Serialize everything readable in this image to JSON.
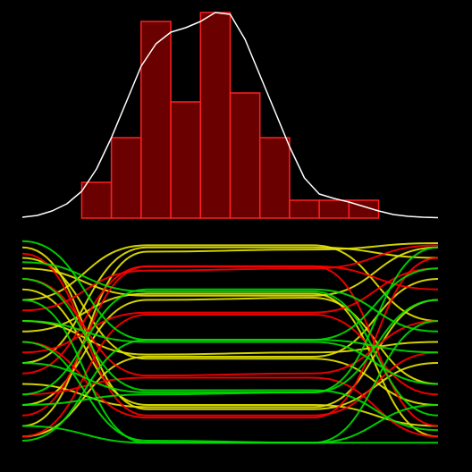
{
  "chart_data": [
    {
      "type": "histogram",
      "bins": [
        0,
        1,
        2,
        3,
        4,
        5,
        6,
        7,
        8,
        9,
        10
      ],
      "counts": [
        4,
        9,
        22,
        13,
        23,
        14,
        9,
        2,
        2,
        2
      ],
      "xlim": [
        -2,
        12
      ],
      "ylim": [
        0,
        23.4
      ],
      "color": "#6b0000",
      "edgecolor": "#ff2020",
      "density": {
        "color": "#ffffff",
        "x": [
          -2,
          -1.5,
          -1,
          -0.5,
          0,
          0.5,
          1,
          1.5,
          2,
          2.5,
          3,
          3.5,
          4,
          4.5,
          5,
          5.5,
          6,
          6.5,
          7,
          7.5,
          8,
          8.5,
          9,
          9.5,
          10,
          10.5,
          11,
          11.5,
          12
        ],
        "y": [
          0.1,
          0.3,
          0.8,
          1.6,
          3,
          5.5,
          9,
          13,
          17,
          19.5,
          20.8,
          21.3,
          22,
          23,
          22.8,
          20,
          16,
          12,
          8,
          4.5,
          2.7,
          2.2,
          1.8,
          1.3,
          0.8,
          0.4,
          0.2,
          0.1,
          0.05
        ]
      }
    },
    {
      "type": "parallel",
      "x": [
        0,
        30,
        70,
        100
      ],
      "xlim": [
        0,
        100
      ],
      "ylim": [
        0,
        100
      ],
      "series": [
        {
          "color": "#e8e800",
          "values": [
            40,
            95,
            95,
            90
          ]
        },
        {
          "color": "#e8e800",
          "values": [
            10,
            93,
            94,
            97
          ]
        },
        {
          "color": "#e8e800",
          "values": [
            70,
            96,
            96,
            60
          ]
        },
        {
          "color": "#e8e800",
          "values": [
            85,
            72,
            72,
            95
          ]
        },
        {
          "color": "#e8e800",
          "values": [
            20,
            70,
            71,
            30
          ]
        },
        {
          "color": "#e8e800",
          "values": [
            55,
            73,
            73,
            5
          ]
        },
        {
          "color": "#e8e800",
          "values": [
            5,
            43,
            43,
            80
          ]
        },
        {
          "color": "#e8e800",
          "values": [
            90,
            42,
            42,
            20
          ]
        },
        {
          "color": "#e8e800",
          "values": [
            60,
            44,
            45,
            50
          ]
        },
        {
          "color": "#e8e800",
          "values": [
            30,
            19,
            19,
            70
          ]
        },
        {
          "color": "#e8e800",
          "values": [
            75,
            20,
            20,
            10
          ]
        },
        {
          "color": "#e8e800",
          "values": [
            95,
            18,
            18,
            40
          ]
        },
        {
          "color": "#ff0000",
          "values": [
            15,
            86,
            86,
            75
          ]
        },
        {
          "color": "#ff0000",
          "values": [
            65,
            84,
            85,
            96
          ]
        },
        {
          "color": "#ff0000",
          "values": [
            45,
            64,
            64,
            85
          ]
        },
        {
          "color": "#ff0000",
          "values": [
            5,
            63,
            63,
            25
          ]
        },
        {
          "color": "#ff0000",
          "values": [
            80,
            34,
            35,
            60
          ]
        },
        {
          "color": "#ff0000",
          "values": [
            25,
            33,
            33,
            5
          ]
        },
        {
          "color": "#ff0000",
          "values": [
            92,
            15,
            15,
            45
          ]
        },
        {
          "color": "#ff0000",
          "values": [
            50,
            14,
            14,
            90
          ]
        },
        {
          "color": "#ff0000",
          "values": [
            35,
            86,
            86,
            10
          ]
        },
        {
          "color": "#00e000",
          "values": [
            25,
            75,
            75,
            55
          ]
        },
        {
          "color": "#00e000",
          "values": [
            88,
            74,
            74,
            15
          ]
        },
        {
          "color": "#00e000",
          "values": [
            3,
            51,
            51,
            85
          ]
        },
        {
          "color": "#00e000",
          "values": [
            60,
            50,
            50,
            30
          ]
        },
        {
          "color": "#00e000",
          "values": [
            40,
            26,
            26,
            95
          ]
        },
        {
          "color": "#00e000",
          "values": [
            80,
            27,
            27,
            8
          ]
        },
        {
          "color": "#00e000",
          "values": [
            10,
            2,
            2,
            60
          ]
        },
        {
          "color": "#00e000",
          "values": [
            70,
            2,
            2,
            2
          ]
        },
        {
          "color": "#00e000",
          "values": [
            98,
            51,
            51,
            45
          ]
        },
        {
          "color": "#00e000",
          "values": [
            50,
            3,
            2,
            20
          ]
        },
        {
          "color": "#00e000",
          "values": [
            20,
            25,
            26,
            70
          ]
        }
      ]
    }
  ]
}
